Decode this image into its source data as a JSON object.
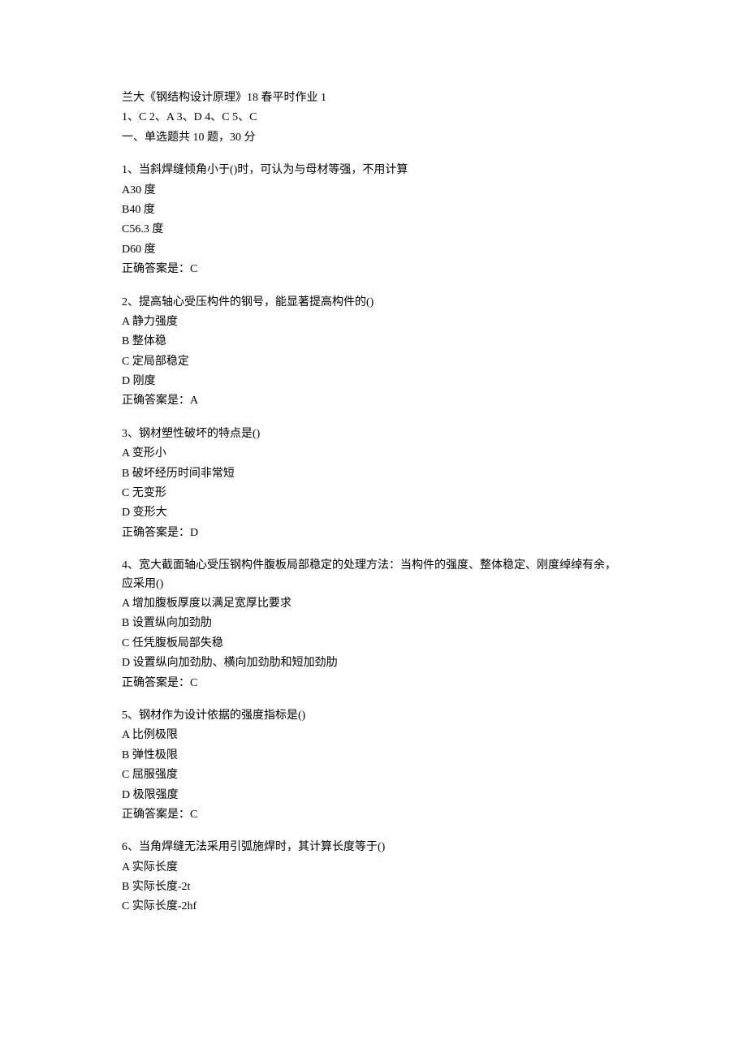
{
  "header": {
    "title": "兰大《钢结构设计原理》18 春平时作业 1",
    "answer_key": "1、C 2、A 3、D 4、C 5、C",
    "section": "一、单选题共 10 题，30 分"
  },
  "questions": [
    {
      "number": "1",
      "stem": "当斜焊缝倾角小于()时，可认为与母材等强，不用计算",
      "options": [
        {
          "label": "A",
          "text": "30 度"
        },
        {
          "label": "B",
          "text": "40 度"
        },
        {
          "label": "C",
          "text": "56.3 度"
        },
        {
          "label": "D",
          "text": "60 度"
        }
      ],
      "answer_label": "正确答案是：",
      "answer": "C"
    },
    {
      "number": "2",
      "stem": "提高轴心受压构件的钢号，能显著提高构件的()",
      "options": [
        {
          "label": "A",
          "text": " 静力强度"
        },
        {
          "label": "B",
          "text": " 整体稳"
        },
        {
          "label": "C",
          "text": " 定局部稳定"
        },
        {
          "label": "D",
          "text": " 刚度"
        }
      ],
      "answer_label": "正确答案是：",
      "answer": "A"
    },
    {
      "number": "3",
      "stem": "钢材塑性破坏的特点是()",
      "options": [
        {
          "label": "A",
          "text": " 变形小"
        },
        {
          "label": "B",
          "text": " 破坏经历时间非常短"
        },
        {
          "label": "C",
          "text": " 无变形"
        },
        {
          "label": "D",
          "text": " 变形大"
        }
      ],
      "answer_label": "正确答案是：",
      "answer": "D"
    },
    {
      "number": "4",
      "stem": "宽大截面轴心受压钢构件腹板局部稳定的处理方法：当构件的强度、整体稳定、刚度绰绰有余，应采用()",
      "options": [
        {
          "label": "A",
          "text": " 增加腹板厚度以满足宽厚比要求"
        },
        {
          "label": "B",
          "text": " 设置纵向加劲肋"
        },
        {
          "label": "C",
          "text": " 任凭腹板局部失稳"
        },
        {
          "label": "D",
          "text": " 设置纵向加劲肋、横向加劲肋和短加劲肋"
        }
      ],
      "answer_label": "正确答案是：",
      "answer": "C"
    },
    {
      "number": "5",
      "stem": "钢材作为设计依据的强度指标是()",
      "options": [
        {
          "label": "A",
          "text": " 比例极限"
        },
        {
          "label": "B",
          "text": " 弹性极限"
        },
        {
          "label": "C",
          "text": " 屈服强度"
        },
        {
          "label": "D",
          "text": " 极限强度"
        }
      ],
      "answer_label": "正确答案是：",
      "answer": "C"
    },
    {
      "number": "6",
      "stem": "当角焊缝无法采用引弧施焊时，其计算长度等于()",
      "options": [
        {
          "label": "A",
          "text": " 实际长度"
        },
        {
          "label": "B",
          "text": " 实际长度-2t"
        },
        {
          "label": "C",
          "text": " 实际长度-2hf"
        }
      ],
      "answer_label": "",
      "answer": ""
    }
  ]
}
